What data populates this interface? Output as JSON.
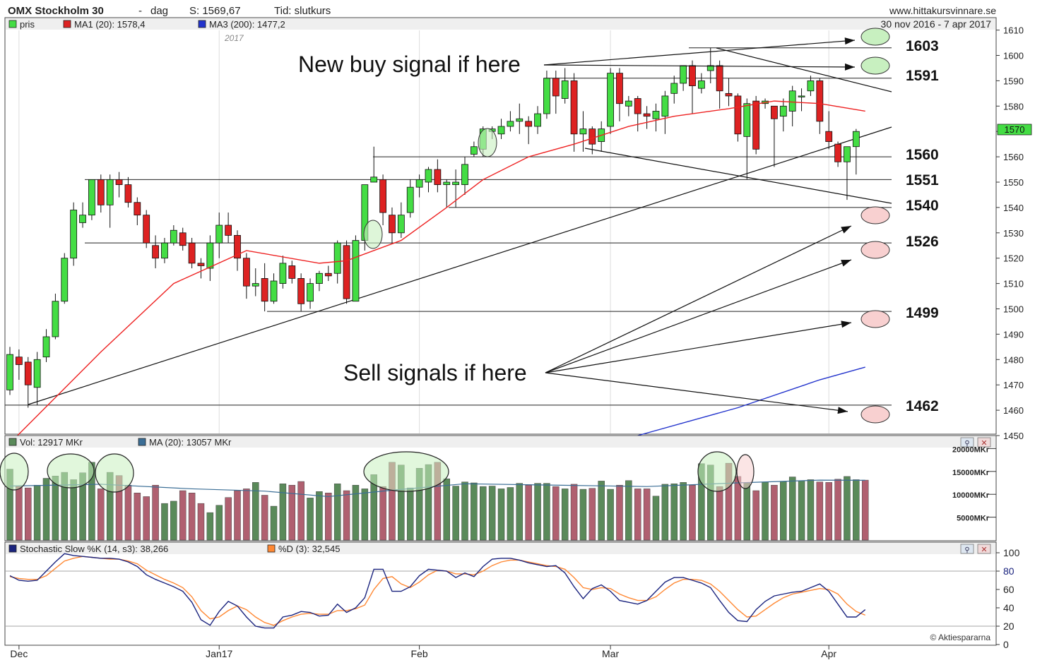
{
  "header": {
    "title": "OMX Stockholm 30",
    "separator": "-",
    "period": "dag",
    "last_label": "S: 1569,67",
    "kind_label": "Tid: slutkurs",
    "source": "www.hittakursvinnare.se",
    "range": "30 nov 2016 - 7 apr 2017",
    "year_marker": "2017"
  },
  "legend": {
    "price": "pris",
    "ma1": "MA1 (20): 1578,4",
    "ma3": "MA3 (200): 1477,2"
  },
  "colors": {
    "up": "#44dd44",
    "down": "#dd2222",
    "ma1": "#ee2222",
    "ma3": "#2233cc",
    "vol_up": "#5a8a5a",
    "vol_down": "#b06070",
    "vol_ma": "#3b6e96",
    "stoch_k": "#1a237e",
    "stoch_d": "#ff8833",
    "buy_marker": "#c8f0c0",
    "sell_marker": "#f8d0d0"
  },
  "annotations": {
    "buy": "New buy signal if here",
    "sell": "Sell signals if here",
    "levels": [
      "1603",
      "1591",
      "1560",
      "1551",
      "1540",
      "1526",
      "1499",
      "1462"
    ],
    "last_price_tag": "1570"
  },
  "volume_panel": {
    "vol_label": "Vol: 12917 MKr",
    "ma_label": "MA (20): 13057 MKr",
    "ticks": [
      "20000MKr",
      "15000MKr",
      "10000MKr",
      "5000MKr"
    ]
  },
  "stoch_panel": {
    "k_label": "Stochastic Slow %K (14, s3): 38,266",
    "d_label": "%D (3): 32,545",
    "ticks": [
      "100",
      "80",
      "60",
      "40",
      "20",
      "0"
    ],
    "credit": "© Aktiespararna"
  },
  "x_labels": [
    "Dec",
    "Jan17",
    "Feb",
    "Mar",
    "Apr"
  ],
  "chart_data": [
    {
      "type": "candlestick",
      "title": "OMX Stockholm 30 - dag",
      "ylim": [
        1450,
        1612
      ],
      "y_ticks": [
        1610,
        1600,
        1590,
        1580,
        1570,
        1560,
        1550,
        1540,
        1530,
        1520,
        1510,
        1500,
        1490,
        1480,
        1470,
        1460,
        1450
      ],
      "candles": [
        {
          "o": 1468,
          "c": 1482,
          "h": 1485,
          "l": 1466
        },
        {
          "o": 1481,
          "c": 1478,
          "h": 1484,
          "l": 1472
        },
        {
          "o": 1479,
          "c": 1470,
          "h": 1481,
          "l": 1461
        },
        {
          "o": 1469,
          "c": 1480,
          "h": 1483,
          "l": 1462
        },
        {
          "o": 1481,
          "c": 1489,
          "h": 1492,
          "l": 1479
        },
        {
          "o": 1489,
          "c": 1503,
          "h": 1506,
          "l": 1488
        },
        {
          "o": 1503,
          "c": 1520,
          "h": 1522,
          "l": 1502
        },
        {
          "o": 1520,
          "c": 1539,
          "h": 1542,
          "l": 1517
        },
        {
          "o": 1534,
          "c": 1537,
          "h": 1542,
          "l": 1532
        },
        {
          "o": 1537,
          "c": 1551,
          "h": 1551,
          "l": 1535
        },
        {
          "o": 1551,
          "c": 1541,
          "h": 1553,
          "l": 1538
        },
        {
          "o": 1541,
          "c": 1551,
          "h": 1553,
          "l": 1532
        },
        {
          "o": 1551,
          "c": 1549,
          "h": 1554,
          "l": 1544
        },
        {
          "o": 1549,
          "c": 1542,
          "h": 1552,
          "l": 1540
        },
        {
          "o": 1542,
          "c": 1537,
          "h": 1544,
          "l": 1533
        },
        {
          "o": 1537,
          "c": 1526,
          "h": 1539,
          "l": 1524
        },
        {
          "o": 1525,
          "c": 1520,
          "h": 1529,
          "l": 1516
        },
        {
          "o": 1520,
          "c": 1526,
          "h": 1528,
          "l": 1518
        },
        {
          "o": 1526,
          "c": 1531,
          "h": 1533,
          "l": 1525
        },
        {
          "o": 1530,
          "c": 1525,
          "h": 1532,
          "l": 1523
        },
        {
          "o": 1526,
          "c": 1518,
          "h": 1528,
          "l": 1516
        },
        {
          "o": 1518,
          "c": 1517,
          "h": 1520,
          "l": 1512
        },
        {
          "o": 1516,
          "c": 1526,
          "h": 1529,
          "l": 1511
        },
        {
          "o": 1526,
          "c": 1533,
          "h": 1538,
          "l": 1520
        },
        {
          "o": 1533,
          "c": 1529,
          "h": 1538,
          "l": 1526
        },
        {
          "o": 1529,
          "c": 1520,
          "h": 1531,
          "l": 1515
        },
        {
          "o": 1520,
          "c": 1509,
          "h": 1522,
          "l": 1504
        },
        {
          "o": 1509,
          "c": 1510,
          "h": 1516,
          "l": 1505
        },
        {
          "o": 1512,
          "c": 1503,
          "h": 1518,
          "l": 1499
        },
        {
          "o": 1503,
          "c": 1511,
          "h": 1514,
          "l": 1502
        },
        {
          "o": 1510,
          "c": 1518,
          "h": 1521,
          "l": 1508
        },
        {
          "o": 1517,
          "c": 1512,
          "h": 1519,
          "l": 1510
        },
        {
          "o": 1512,
          "c": 1502,
          "h": 1514,
          "l": 1499
        },
        {
          "o": 1503,
          "c": 1510,
          "h": 1512,
          "l": 1500
        },
        {
          "o": 1510,
          "c": 1514,
          "h": 1515,
          "l": 1507
        },
        {
          "o": 1514,
          "c": 1513,
          "h": 1517,
          "l": 1511
        },
        {
          "o": 1514,
          "c": 1526,
          "h": 1527,
          "l": 1510
        },
        {
          "o": 1525,
          "c": 1504,
          "h": 1527,
          "l": 1502
        },
        {
          "o": 1503,
          "c": 1527,
          "h": 1529,
          "l": 1503
        },
        {
          "o": 1527,
          "c": 1549,
          "h": 1549,
          "l": 1523
        },
        {
          "o": 1550,
          "c": 1552,
          "h": 1564,
          "l": 1550
        },
        {
          "o": 1551,
          "c": 1538,
          "h": 1553,
          "l": 1533
        },
        {
          "o": 1537,
          "c": 1530,
          "h": 1540,
          "l": 1526
        },
        {
          "o": 1530,
          "c": 1537,
          "h": 1542,
          "l": 1528
        },
        {
          "o": 1538,
          "c": 1548,
          "h": 1551,
          "l": 1536
        },
        {
          "o": 1548,
          "c": 1551,
          "h": 1553,
          "l": 1544
        },
        {
          "o": 1550,
          "c": 1555,
          "h": 1556,
          "l": 1546
        },
        {
          "o": 1555,
          "c": 1549,
          "h": 1559,
          "l": 1546
        },
        {
          "o": 1549,
          "c": 1550,
          "h": 1551,
          "l": 1540
        },
        {
          "o": 1549,
          "c": 1550,
          "h": 1555,
          "l": 1540
        },
        {
          "o": 1549,
          "c": 1557,
          "h": 1560,
          "l": 1545
        },
        {
          "o": 1561,
          "c": 1564,
          "h": 1566,
          "l": 1560
        },
        {
          "o": 1563,
          "c": 1571,
          "h": 1572,
          "l": 1560
        },
        {
          "o": 1570,
          "c": 1571,
          "h": 1572,
          "l": 1567
        },
        {
          "o": 1569,
          "c": 1572,
          "h": 1575,
          "l": 1567
        },
        {
          "o": 1572,
          "c": 1574,
          "h": 1578,
          "l": 1570
        },
        {
          "o": 1574,
          "c": 1575,
          "h": 1581,
          "l": 1569
        },
        {
          "o": 1574,
          "c": 1572,
          "h": 1576,
          "l": 1565
        },
        {
          "o": 1572,
          "c": 1577,
          "h": 1580,
          "l": 1569
        },
        {
          "o": 1577,
          "c": 1591,
          "h": 1594,
          "l": 1575
        },
        {
          "o": 1591,
          "c": 1584,
          "h": 1594,
          "l": 1577
        },
        {
          "o": 1583,
          "c": 1590,
          "h": 1595,
          "l": 1581
        },
        {
          "o": 1590,
          "c": 1569,
          "h": 1593,
          "l": 1562
        },
        {
          "o": 1569,
          "c": 1571,
          "h": 1578,
          "l": 1562
        },
        {
          "o": 1571,
          "c": 1565,
          "h": 1572,
          "l": 1561
        },
        {
          "o": 1566,
          "c": 1571,
          "h": 1574,
          "l": 1562
        },
        {
          "o": 1572,
          "c": 1593,
          "h": 1595,
          "l": 1569
        },
        {
          "o": 1593,
          "c": 1581,
          "h": 1595,
          "l": 1574
        },
        {
          "o": 1580,
          "c": 1582,
          "h": 1584,
          "l": 1576
        },
        {
          "o": 1583,
          "c": 1577,
          "h": 1584,
          "l": 1570
        },
        {
          "o": 1577,
          "c": 1576,
          "h": 1580,
          "l": 1571
        },
        {
          "o": 1575,
          "c": 1578,
          "h": 1581,
          "l": 1570
        },
        {
          "o": 1576,
          "c": 1584,
          "h": 1586,
          "l": 1569
        },
        {
          "o": 1585,
          "c": 1589,
          "h": 1592,
          "l": 1581
        },
        {
          "o": 1589,
          "c": 1596,
          "h": 1596,
          "l": 1586
        },
        {
          "o": 1596,
          "c": 1588,
          "h": 1598,
          "l": 1577
        },
        {
          "o": 1587,
          "c": 1590,
          "h": 1593,
          "l": 1585
        },
        {
          "o": 1594,
          "c": 1596,
          "h": 1603,
          "l": 1589
        },
        {
          "o": 1596,
          "c": 1586,
          "h": 1598,
          "l": 1579
        },
        {
          "o": 1585,
          "c": 1584,
          "h": 1591,
          "l": 1580
        },
        {
          "o": 1584,
          "c": 1569,
          "h": 1585,
          "l": 1566
        },
        {
          "o": 1568,
          "c": 1581,
          "h": 1583,
          "l": 1551
        },
        {
          "o": 1582,
          "c": 1563,
          "h": 1584,
          "l": 1561
        },
        {
          "o": 1581,
          "c": 1582,
          "h": 1583,
          "l": 1579
        },
        {
          "o": 1580,
          "c": 1575,
          "h": 1580,
          "l": 1556
        },
        {
          "o": 1576,
          "c": 1580,
          "h": 1583,
          "l": 1570
        },
        {
          "o": 1578,
          "c": 1586,
          "h": 1588,
          "l": 1572
        },
        {
          "o": 1584,
          "c": 1584,
          "h": 1587,
          "l": 1578
        },
        {
          "o": 1586,
          "c": 1590,
          "h": 1592,
          "l": 1584
        },
        {
          "o": 1590,
          "c": 1574,
          "h": 1591,
          "l": 1569
        },
        {
          "o": 1570,
          "c": 1566,
          "h": 1578,
          "l": 1563
        },
        {
          "o": 1565,
          "c": 1558,
          "h": 1566,
          "l": 1556
        },
        {
          "o": 1558,
          "c": 1564,
          "h": 1564,
          "l": 1543
        },
        {
          "o": 1564,
          "c": 1570,
          "h": 1571,
          "l": 1553
        }
      ],
      "ma1": [
        {
          "i": 0,
          "v": 1447
        },
        {
          "i": 10,
          "v": 1483
        },
        {
          "i": 18,
          "v": 1510
        },
        {
          "i": 26,
          "v": 1523
        },
        {
          "i": 34,
          "v": 1518
        },
        {
          "i": 37,
          "v": 1519
        },
        {
          "i": 43,
          "v": 1527
        },
        {
          "i": 48,
          "v": 1540
        },
        {
          "i": 52,
          "v": 1551
        },
        {
          "i": 57,
          "v": 1560
        },
        {
          "i": 62,
          "v": 1565
        },
        {
          "i": 68,
          "v": 1572
        },
        {
          "i": 73,
          "v": 1576
        },
        {
          "i": 79,
          "v": 1579
        },
        {
          "i": 84,
          "v": 1582
        },
        {
          "i": 89,
          "v": 1581
        },
        {
          "i": 94,
          "v": 1578
        }
      ],
      "ma3": [
        {
          "i": 69,
          "v": 1450
        },
        {
          "i": 80,
          "v": 1461
        },
        {
          "i": 89,
          "v": 1472
        },
        {
          "i": 94,
          "v": 1477
        }
      ],
      "levels": [
        1603,
        1591,
        1560,
        1551,
        1540,
        1526,
        1499,
        1462
      ]
    },
    {
      "type": "bar",
      "title": "Vol: 12917 MKr",
      "ylim": [
        0,
        20000
      ],
      "values": [
        15500,
        11800,
        11400,
        12000,
        13500,
        14000,
        14800,
        13200,
        14700,
        17000,
        11200,
        14800,
        14100,
        12000,
        10300,
        9500,
        12000,
        8000,
        8500,
        10800,
        10300,
        8000,
        6000,
        7600,
        9300,
        10800,
        11200,
        12600,
        9800,
        7400,
        12300,
        12000,
        12800,
        9200,
        10600,
        10300,
        12300,
        10800,
        12000,
        11200,
        14300,
        11700,
        17000,
        16400,
        11400,
        15700,
        16500,
        17000,
        13400,
        11800,
        12700,
        12500,
        11700,
        11800,
        11200,
        11500,
        12400,
        12000,
        12400,
        12400,
        11700,
        11200,
        12200,
        11100,
        11300,
        12900,
        11100,
        12000,
        13000,
        11200,
        11200,
        9600,
        12200,
        12300,
        12600,
        12000,
        16700,
        16400,
        11700,
        16800,
        13900,
        12500,
        10800,
        12700,
        12000,
        12800,
        13800,
        13000,
        13200,
        12700,
        12600,
        13300,
        13900,
        13200,
        13100
      ],
      "ma": [
        {
          "i": 0,
          "v": 11800
        },
        {
          "i": 10,
          "v": 12200
        },
        {
          "i": 20,
          "v": 11200
        },
        {
          "i": 28,
          "v": 10700
        },
        {
          "i": 35,
          "v": 9500
        },
        {
          "i": 42,
          "v": 10900
        },
        {
          "i": 50,
          "v": 12300
        },
        {
          "i": 60,
          "v": 12000
        },
        {
          "i": 70,
          "v": 11700
        },
        {
          "i": 80,
          "v": 12500
        },
        {
          "i": 89,
          "v": 13100
        },
        {
          "i": 94,
          "v": 13057
        }
      ]
    },
    {
      "type": "line",
      "title": "Stochastic Slow %K (14, s3)",
      "ylim": [
        0,
        100
      ],
      "y_ticks": [
        100,
        80,
        60,
        40,
        20,
        0
      ],
      "series": [
        {
          "name": "Stochastic Slow %K (14, s3): 38,266",
          "values": [
            75,
            70,
            69,
            70,
            80,
            90,
            99,
            97,
            96,
            95,
            94,
            94,
            93,
            90,
            85,
            76,
            71,
            67,
            63,
            58,
            46,
            27,
            21,
            36,
            47,
            42,
            30,
            20,
            18,
            18,
            30,
            32,
            36,
            35,
            31,
            32,
            44,
            35,
            40,
            51,
            82,
            82,
            58,
            58,
            63,
            75,
            82,
            81,
            80,
            73,
            78,
            74,
            85,
            93,
            94,
            94,
            92,
            89,
            87,
            85,
            86,
            78,
            63,
            50,
            61,
            65,
            58,
            48,
            46,
            44,
            48,
            58,
            68,
            73,
            73,
            70,
            67,
            62,
            48,
            35,
            26,
            25,
            38,
            47,
            53,
            55,
            57,
            58,
            62,
            66,
            58,
            44,
            30,
            30,
            38
          ]
        },
        {
          "name": "%D (3): 32,545",
          "values": [
            74,
            72,
            71,
            71,
            75,
            83,
            91,
            94,
            96,
            95,
            94,
            93,
            93,
            91,
            88,
            81,
            76,
            71,
            67,
            62,
            52,
            37,
            28,
            30,
            37,
            42,
            38,
            30,
            24,
            21,
            26,
            30,
            33,
            34,
            33,
            33,
            37,
            37,
            39,
            43,
            60,
            72,
            74,
            66,
            62,
            68,
            76,
            81,
            80,
            77,
            77,
            76,
            80,
            86,
            90,
            92,
            92,
            90,
            88,
            86,
            85,
            82,
            73,
            62,
            60,
            62,
            61,
            55,
            51,
            48,
            48,
            52,
            60,
            67,
            71,
            71,
            70,
            66,
            58,
            48,
            38,
            30,
            31,
            38,
            45,
            51,
            55,
            57,
            59,
            61,
            60,
            55,
            44,
            36,
            32
          ]
        }
      ]
    }
  ]
}
